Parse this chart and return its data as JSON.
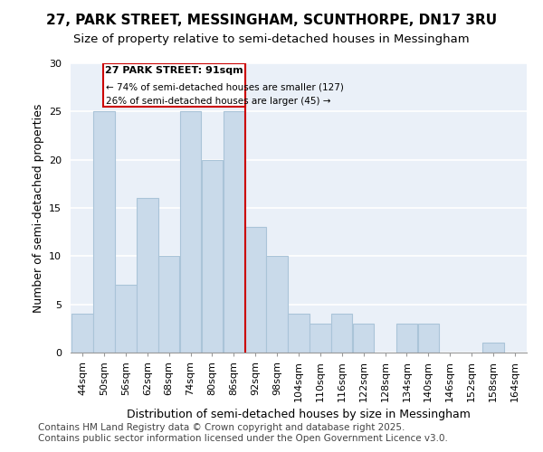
{
  "title_line1": "27, PARK STREET, MESSINGHAM, SCUNTHORPE, DN17 3RU",
  "title_line2": "Size of property relative to semi-detached houses in Messingham",
  "xlabel": "Distribution of semi-detached houses by size in Messingham",
  "ylabel": "Number of semi-detached properties",
  "categories": [
    "44sqm",
    "50sqm",
    "56sqm",
    "62sqm",
    "68sqm",
    "74sqm",
    "80sqm",
    "86sqm",
    "92sqm",
    "98sqm",
    "104sqm",
    "110sqm",
    "116sqm",
    "122sqm",
    "128sqm",
    "134sqm",
    "140sqm",
    "146sqm",
    "152sqm",
    "158sqm",
    "164sqm"
  ],
  "values": [
    4,
    25,
    7,
    16,
    10,
    25,
    20,
    25,
    13,
    10,
    4,
    3,
    4,
    3,
    0,
    3,
    3,
    0,
    0,
    1,
    0
  ],
  "bar_color": "#c9daea",
  "bar_edge_color": "#aac4d8",
  "background_color": "#eaf0f8",
  "grid_color": "#ffffff",
  "property_label": "27 PARK STREET: 91sqm",
  "annotation_line1": "← 74% of semi-detached houses are smaller (127)",
  "annotation_line2": "26% of semi-detached houses are larger (45) →",
  "annotation_box_color": "#cc0000",
  "vline_color": "#cc0000",
  "vline_x_index": 8,
  "ylim": [
    0,
    30
  ],
  "yticks": [
    0,
    5,
    10,
    15,
    20,
    25,
    30
  ],
  "footnote_line1": "Contains HM Land Registry data © Crown copyright and database right 2025.",
  "footnote_line2": "Contains public sector information licensed under the Open Government Licence v3.0.",
  "title_fontsize": 11,
  "subtitle_fontsize": 9.5,
  "axis_label_fontsize": 9,
  "tick_fontsize": 8,
  "annotation_fontsize": 8,
  "footnote_fontsize": 7.5,
  "fig_background": "#ffffff"
}
